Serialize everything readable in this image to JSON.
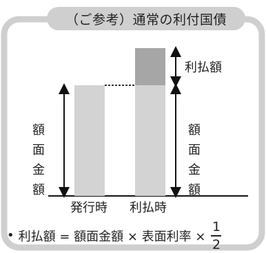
{
  "title": "（ご参考）通常の利付国債",
  "labels": {
    "interest_payment": "利払額",
    "face_value_left": "額面\n金額",
    "face_value_right": "額面\n金額",
    "issue_time": "発行時",
    "payment_time": "利払時"
  },
  "formula": {
    "bullet": "•",
    "text": "利払額 = 額面金額 × 表面利率 ×",
    "numerator": "1",
    "denominator": "2"
  },
  "colors": {
    "frame": "#cfcfcf",
    "bar_face": "#d3d3d3",
    "bar_interest": "#a6a6a6",
    "line": "#111111"
  }
}
